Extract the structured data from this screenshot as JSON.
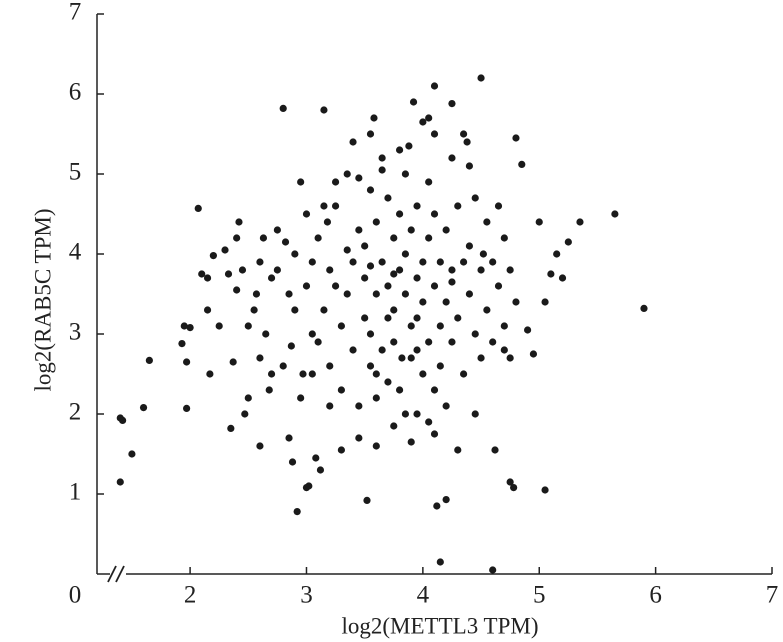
{
  "chart_data": {
    "type": "scatter",
    "x_label": "log2(METTL3 TPM)",
    "y_label": "log2(RAB5C TPM)",
    "xlim": [
      1.2,
      7
    ],
    "ylim": [
      0,
      7
    ],
    "xticks": [
      2,
      3,
      4,
      5,
      6,
      7
    ],
    "yticks": [
      0,
      1,
      2,
      3,
      4,
      5,
      6,
      7
    ],
    "x": [
      1.4,
      1.42,
      1.4,
      1.5,
      1.6,
      1.65,
      1.93,
      1.95,
      2.0,
      1.97,
      1.97,
      2.07,
      2.1,
      2.15,
      2.15,
      2.17,
      2.2,
      2.25,
      2.3,
      2.33,
      2.35,
      2.37,
      2.4,
      2.42,
      2.4,
      2.47,
      2.5,
      2.55,
      2.57,
      2.6,
      2.63,
      2.65,
      2.68,
      2.75,
      2.8,
      2.82,
      2.85,
      2.87,
      2.88,
      2.92,
      2.95,
      2.97,
      3.0,
      3.02,
      3.05,
      3.08,
      3.12,
      3.15,
      3.18,
      3.2,
      3.25,
      3.3,
      3.35,
      3.4,
      3.45,
      3.52,
      3.55,
      3.58,
      3.6,
      3.65,
      3.7,
      3.75,
      3.8,
      3.82,
      3.88,
      3.92,
      3.95,
      4.0,
      4.05,
      4.1,
      4.1,
      4.12,
      4.15,
      4.2,
      4.25,
      4.3,
      4.35,
      4.38,
      4.5,
      4.52,
      4.6,
      4.62,
      4.75,
      4.78,
      4.8,
      4.85,
      4.95,
      5.05,
      5.0,
      5.1,
      5.15,
      5.2,
      5.25,
      5.35,
      5.65,
      5.9,
      5.05,
      4.9,
      4.75,
      4.7,
      4.45,
      3.0,
      3.05,
      3.1,
      3.1,
      3.15,
      3.2,
      3.25,
      3.3,
      3.3,
      3.35,
      3.4,
      3.4,
      3.45,
      3.45,
      3.5,
      3.5,
      3.5,
      3.55,
      3.55,
      3.6,
      3.6,
      3.6,
      3.65,
      3.65,
      3.7,
      3.7,
      3.7,
      3.75,
      3.75,
      3.75,
      3.8,
      3.8,
      3.8,
      3.85,
      3.85,
      3.85,
      3.9,
      3.9,
      3.9,
      3.95,
      3.95,
      3.95,
      4.0,
      4.0,
      4.0,
      4.05,
      4.05,
      4.05,
      4.1,
      4.1,
      4.1,
      4.15,
      4.15,
      4.15,
      4.2,
      4.2,
      4.2,
      4.25,
      4.25,
      4.3,
      4.3,
      4.35,
      4.35,
      4.4,
      4.4,
      4.45,
      4.5,
      4.5,
      4.55,
      4.55,
      4.6,
      4.6,
      4.65,
      4.7,
      4.75,
      4.8,
      2.9,
      2.9,
      2.85,
      2.8,
      2.75,
      2.7,
      2.7,
      2.6,
      2.6,
      2.95,
      3.05,
      3.15,
      3.25,
      3.35,
      3.55,
      3.65,
      3.85,
      4.05,
      4.25,
      4.4,
      4.45,
      3.45,
      3.6,
      3.9,
      4.1,
      3.2,
      2.5,
      2.45,
      3.0,
      4.65,
      4.7,
      3.95,
      3.75,
      3.55,
      4.25
    ],
    "series": [
      {
        "color": "#1a1a1a",
        "values": [
          1.95,
          1.92,
          1.15,
          1.5,
          2.08,
          2.67,
          2.88,
          3.1,
          3.08,
          2.65,
          2.07,
          4.57,
          3.75,
          3.7,
          3.3,
          2.5,
          3.98,
          3.1,
          4.05,
          3.75,
          1.82,
          2.65,
          4.2,
          4.4,
          3.55,
          2.0,
          2.2,
          3.3,
          3.5,
          1.6,
          4.2,
          3.0,
          2.3,
          3.8,
          5.82,
          4.15,
          1.7,
          2.85,
          1.4,
          0.78,
          4.9,
          2.5,
          1.08,
          1.1,
          3.0,
          1.45,
          1.3,
          5.8,
          4.4,
          2.6,
          3.6,
          1.55,
          4.05,
          5.4,
          4.95,
          0.92,
          5.5,
          5.7,
          2.5,
          5.05,
          3.2,
          1.85,
          5.3,
          2.7,
          5.35,
          5.9,
          2.0,
          5.65,
          5.7,
          6.1,
          5.5,
          0.85,
          0.15,
          0.93,
          5.88,
          1.55,
          5.5,
          5.4,
          6.2,
          4.0,
          0.05,
          1.55,
          1.15,
          1.08,
          5.45,
          5.12,
          2.75,
          1.05,
          4.4,
          3.75,
          4.0,
          3.7,
          4.15,
          4.4,
          4.5,
          3.32,
          3.4,
          3.05,
          2.7,
          4.2,
          2.0,
          3.6,
          3.9,
          4.2,
          2.9,
          3.3,
          3.8,
          4.6,
          3.1,
          2.3,
          3.5,
          3.9,
          2.8,
          4.3,
          2.1,
          3.2,
          3.7,
          4.1,
          2.6,
          3.0,
          4.4,
          3.5,
          2.2,
          3.9,
          2.8,
          4.7,
          3.6,
          2.4,
          4.2,
          3.3,
          2.9,
          3.8,
          4.5,
          2.3,
          3.5,
          4.0,
          2.0,
          3.1,
          4.3,
          2.7,
          3.7,
          4.6,
          3.2,
          3.9,
          2.5,
          3.4,
          4.2,
          2.9,
          1.9,
          3.6,
          4.5,
          2.3,
          3.1,
          3.9,
          2.6,
          4.3,
          3.4,
          2.1,
          3.8,
          2.9,
          4.6,
          3.2,
          3.9,
          2.5,
          4.1,
          3.5,
          3.0,
          3.8,
          2.7,
          4.4,
          3.3,
          3.9,
          2.9,
          3.6,
          3.1,
          3.8,
          3.4,
          3.3,
          4.0,
          3.5,
          2.6,
          4.3,
          3.7,
          2.5,
          3.9,
          2.7,
          2.2,
          2.5,
          4.6,
          4.9,
          5.0,
          4.8,
          5.2,
          5.0,
          4.9,
          5.2,
          5.1,
          4.7,
          1.7,
          1.6,
          1.65,
          1.75,
          2.1,
          3.1,
          3.8,
          4.5,
          4.6,
          2.8,
          2.8,
          3.75,
          3.85,
          3.65
        ]
      }
    ]
  }
}
